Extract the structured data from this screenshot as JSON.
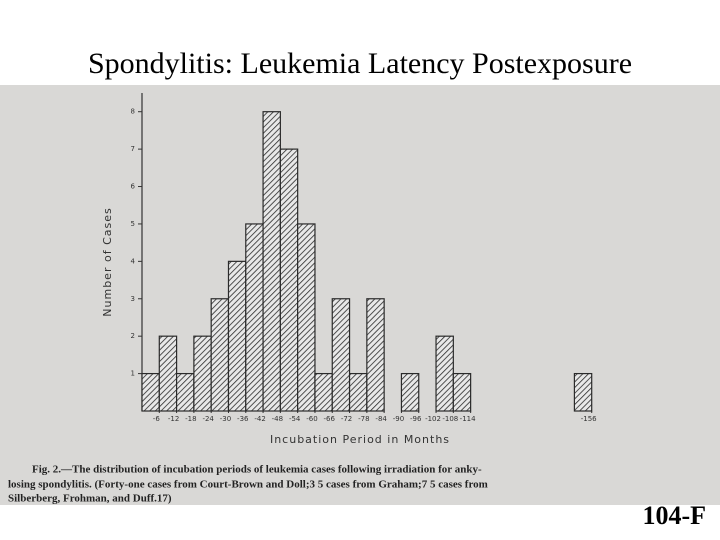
{
  "title": "Spondylitis: Leukemia Latency Postexposure",
  "chart_data": {
    "type": "histogram",
    "x_label": "Incubation Period in Months",
    "y_label": "Number of Cases",
    "bins": [
      0,
      -6,
      -12,
      -18,
      -24,
      -30,
      -36,
      -42,
      -48,
      -54,
      -60,
      -66,
      -72,
      -78,
      -84,
      -90,
      -96,
      -102,
      -108,
      -114,
      -120,
      -126,
      -132,
      -138,
      -144,
      -150,
      -156
    ],
    "counts": [
      1,
      2,
      1,
      2,
      3,
      4,
      5,
      8,
      7,
      5,
      1,
      3,
      1,
      3,
      0,
      1,
      0,
      2,
      1,
      0,
      0,
      0,
      0,
      0,
      0,
      1
    ],
    "color": "#2a2a2a",
    "xlim": [
      0,
      -162
    ],
    "xticks": [
      -6,
      -12,
      -18,
      -24,
      -30,
      -36,
      -42,
      -48,
      -54,
      -60,
      -66,
      -72,
      -78,
      -84,
      -90,
      -96,
      -102,
      -108,
      -114,
      -156
    ],
    "ylim": [
      0,
      8.5
    ],
    "yticks": [
      1,
      2,
      3,
      4,
      5,
      6,
      7,
      8
    ]
  },
  "caption": [
    "Fig. 2.—The distribution of incubation periods of leukemia cases following irradiation for anky-",
    "losing spondylitis. (Forty-one cases from Court-Brown and Doll;3 5 cases from Graham;7 5 cases from",
    "Silberberg, Frohman, and Duff.17)"
  ],
  "slide_label": "104-F"
}
